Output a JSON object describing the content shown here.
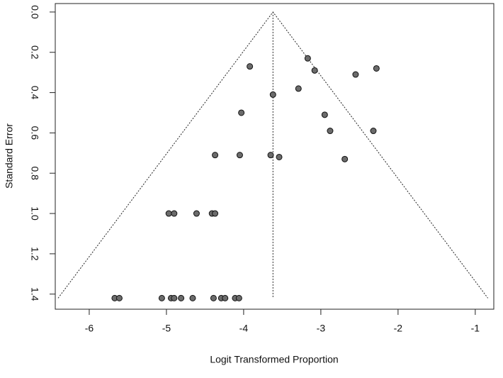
{
  "chart_data": {
    "type": "scatter",
    "xlabel": "Logit Transformed Proportion",
    "ylabel": "Standard Error",
    "xlim": [
      -6.44,
      -0.76
    ],
    "xticks": [
      -6,
      -5,
      -4,
      -3,
      -2,
      -1
    ],
    "ylim": [
      1.475,
      -0.042
    ],
    "yticks": [
      {
        "value": 0,
        "label": "0.0"
      },
      0.2,
      0.4,
      0.6,
      0.8,
      {
        "value": 1,
        "label": "1.0"
      },
      1.2,
      1.4
    ],
    "color": "#6b6b6b",
    "funnel_center": -3.62,
    "funnel_se_max": 1.42,
    "funnel_z": 1.96,
    "series": [
      {
        "x": [
          -3.17,
          -3.92,
          -3.08,
          -2.28,
          -2.55,
          -3.29,
          -3.62,
          -4.03,
          -2.95,
          -2.88,
          -2.32,
          -4.37,
          -4.05,
          -3.65,
          -3.54,
          -2.69,
          -4.97,
          -4.9,
          -4.61,
          -4.41,
          -4.37,
          -5.67,
          -5.61,
          -5.06,
          -4.94,
          -4.9,
          -4.81,
          -4.66,
          -4.39,
          -4.29,
          -4.24,
          -4.11,
          -4.06
        ],
        "values": [
          0.23,
          0.27,
          0.29,
          0.28,
          0.31,
          0.38,
          0.41,
          0.5,
          0.51,
          0.59,
          0.59,
          0.71,
          0.71,
          0.71,
          0.72,
          0.73,
          1.0,
          1.0,
          1.0,
          1.0,
          1.0,
          1.42,
          1.42,
          1.42,
          1.42,
          1.42,
          1.42,
          1.42,
          1.42,
          1.42,
          1.42,
          1.42,
          1.42
        ]
      }
    ]
  }
}
